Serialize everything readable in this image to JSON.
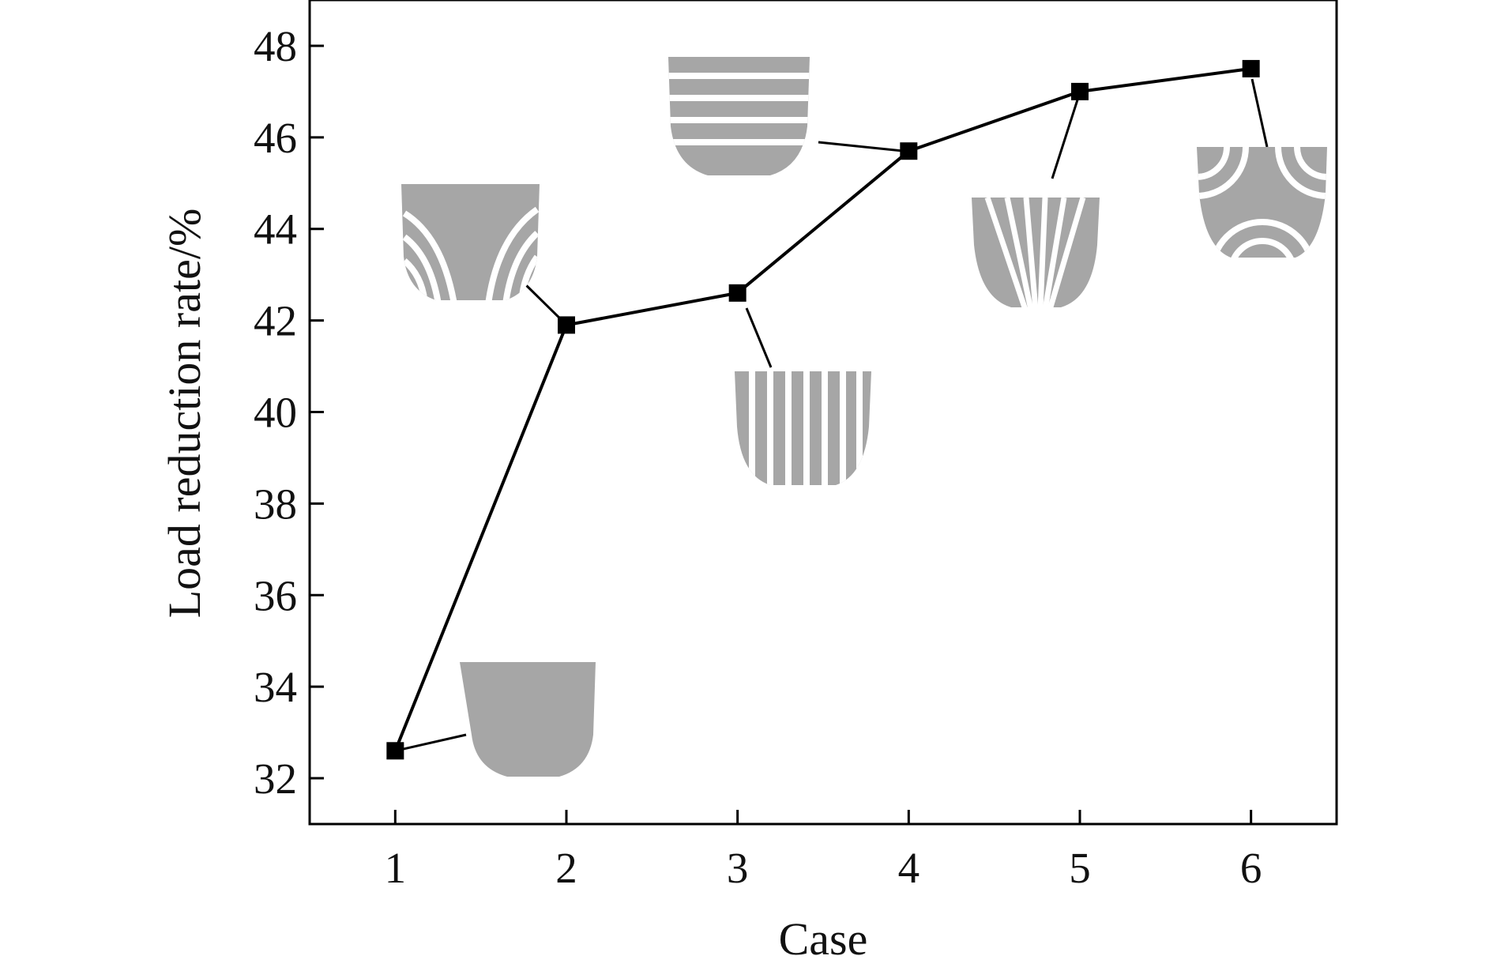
{
  "colors": {
    "line": "#000000",
    "marker": "#000000",
    "schematic_fill": "#a6a6a6",
    "schematic_stripe": "#ffffff"
  },
  "chart_data": {
    "type": "line",
    "xlabel": "Case",
    "ylabel": "Load reduction rate/%",
    "x": [
      1,
      2,
      3,
      4,
      5,
      6
    ],
    "xticks": [
      "1",
      "2",
      "3",
      "4",
      "5",
      "6"
    ],
    "yticks": [
      "32",
      "34",
      "36",
      "38",
      "40",
      "42",
      "44",
      "46",
      "48"
    ],
    "xlim": [
      0.5,
      6.5
    ],
    "ylim": [
      31,
      49
    ],
    "grid": false,
    "legend": "none",
    "series": [
      {
        "values": [
          32.6,
          41.9,
          42.6,
          45.7,
          47.0,
          47.5
        ],
        "marker": "square",
        "color": "#000000"
      }
    ],
    "annotations": [
      {
        "case": 1,
        "pattern": "none"
      },
      {
        "case": 2,
        "pattern": "curved-v-grooves"
      },
      {
        "case": 3,
        "pattern": "vertical-stripes"
      },
      {
        "case": 4,
        "pattern": "horizontal-stripes"
      },
      {
        "case": 5,
        "pattern": "converging-stripes"
      },
      {
        "case": 6,
        "pattern": "corner-arcs"
      }
    ]
  }
}
